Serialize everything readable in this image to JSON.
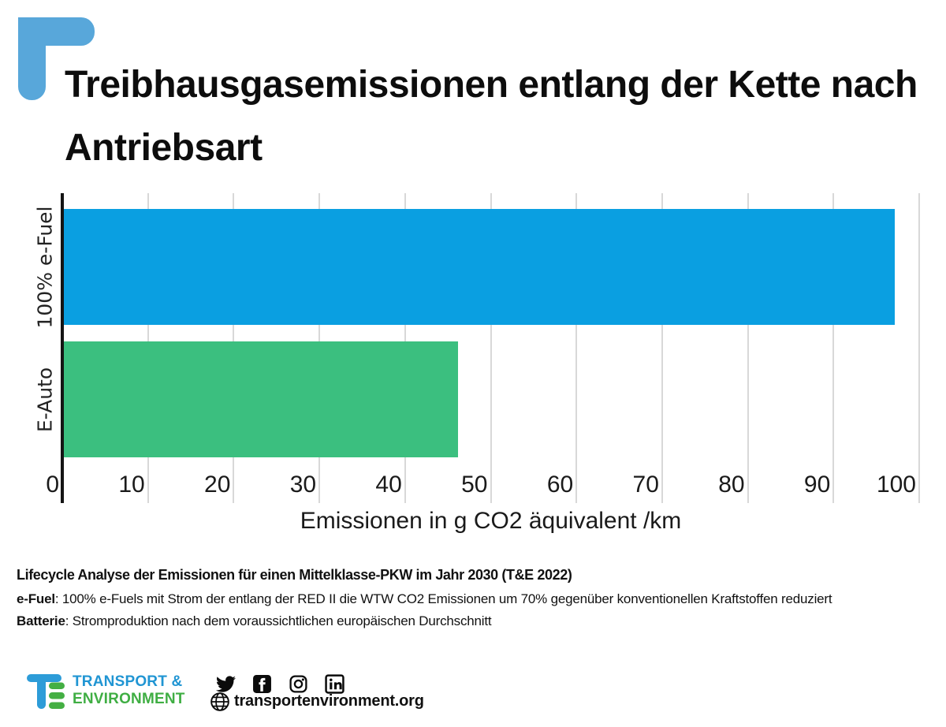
{
  "header": {
    "title_line1": "Treibhausgasemissionen entlang der Kette nach",
    "title_line2": "Antriebsart"
  },
  "chart_data": {
    "type": "bar",
    "orientation": "horizontal",
    "title": "Treibhausgasemissionen entlang der Kette nach Antriebsart",
    "categories": [
      "100% e-Fuel",
      "E-Auto"
    ],
    "values": [
      97,
      46
    ],
    "bar_colors": [
      "#0a9fe1",
      "#3bbf7f"
    ],
    "xlabel": "Emissionen in g CO2 äquivalent /km",
    "ylabel": "",
    "xlim": [
      0,
      100
    ],
    "xticks": [
      0,
      10,
      20,
      30,
      40,
      50,
      60,
      70,
      80,
      90,
      100
    ],
    "grid": "vertical-gridlines",
    "legend": false
  },
  "notes": {
    "heading": "Lifecycle Analyse der Emissionen für einen Mittelklasse-PKW im Jahr 2030 (T&E 2022)",
    "note1_label": "e-Fuel",
    "note1_text": ": 100% e-Fuels mit Strom der entlang der RED II die WTW CO2 Emissionen um 70% gegenüber konventionellen Kraftstoffen reduziert",
    "note2_label": "Batterie",
    "note2_text": ": Stromproduktion nach dem voraussichtlichen europäischen Durchschnitt"
  },
  "footer": {
    "logo_line1": "TRANSPORT &",
    "logo_line2": "ENVIRONMENT",
    "website": "transportenvironment.org",
    "social_icons": [
      "twitter-icon",
      "facebook-icon",
      "instagram-icon",
      "linkedin-icon"
    ]
  },
  "colors": {
    "bar_blue": "#0a9fe1",
    "bar_green": "#3bbf7f",
    "corner_accent_blue": "#58a7da",
    "logo_blue": "#2095d3",
    "logo_green": "#3fae43",
    "gridline_gray": "#d8d8d8",
    "axis_black": "#141414"
  }
}
